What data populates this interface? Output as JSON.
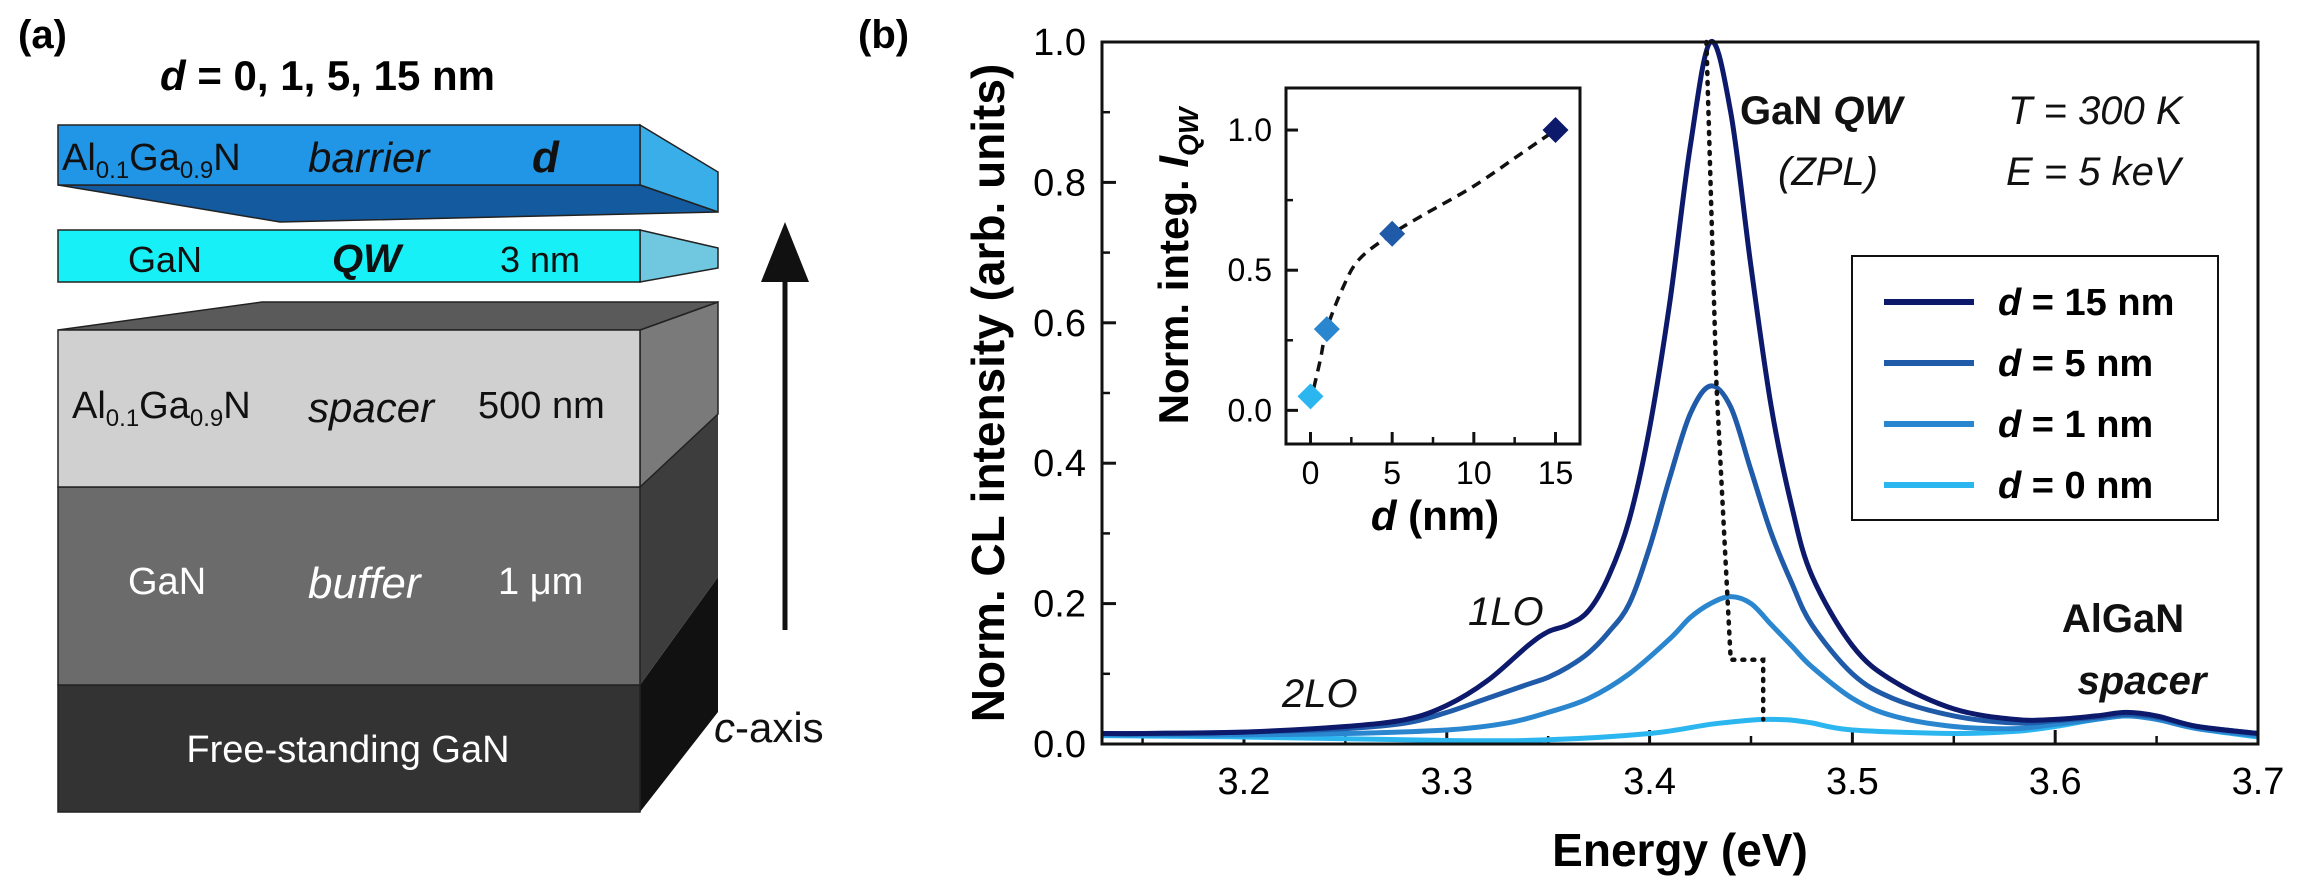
{
  "panel_a": {
    "label": "(a)",
    "title_var": "d",
    "title_rest": " = 0, 1, 5, 15 nm",
    "layers": {
      "barrier": {
        "mat_main": "Al",
        "sub1": "0.1",
        "mat_mid": "Ga",
        "sub2": "0.9",
        "mat_end": "N",
        "role": "barrier",
        "thickness": "d",
        "color": "#2196e6"
      },
      "qw": {
        "material": "GaN",
        "role": "QW",
        "thickness": "3 nm",
        "color": "#16f0f6"
      },
      "spacer": {
        "mat_main": "Al",
        "sub1": "0.1",
        "mat_mid": "Ga",
        "sub2": "0.9",
        "mat_end": "N",
        "role": "spacer",
        "thickness": "500 nm",
        "color": "#d0d0d0"
      },
      "buffer": {
        "material": "GaN",
        "role": "buffer",
        "thickness": "1 μm",
        "color": "#6b6b6b"
      },
      "substrate": {
        "material": "Free-standing GaN",
        "color": "#333333"
      }
    },
    "axis_label_var": "c",
    "axis_label_rest": "-axis"
  },
  "panel_b": {
    "label": "(b)",
    "annotations": {
      "gan_qw_prefix": "GaN ",
      "gan_qw_var": "QW",
      "zpl": "(ZPL)",
      "temperature": "T = 300 K",
      "energy": "E = 5 keV",
      "lo1": "1LO",
      "lo2": "2LO",
      "algan": "AlGaN",
      "spacer": "spacer"
    }
  },
  "chart_data": [
    {
      "type": "line",
      "title": "",
      "xlabel": "Energy (eV)",
      "ylabel": "Norm. CL intensity (arb. units)",
      "xlim": [
        3.13,
        3.7
      ],
      "ylim": [
        0.0,
        1.0
      ],
      "xticks": [
        3.2,
        3.3,
        3.4,
        3.5,
        3.6,
        3.7
      ],
      "yticks": [
        0.0,
        0.2,
        0.4,
        0.6,
        0.8,
        1.0
      ],
      "tick_labels_x": [
        "3.2",
        "3.3",
        "3.4",
        "3.5",
        "3.6",
        "3.7"
      ],
      "tick_labels_y": [
        "0.0",
        "0.2",
        "0.4",
        "0.6",
        "0.8",
        "1.0"
      ],
      "legend_position": "right",
      "series": [
        {
          "name": "d = 15 nm",
          "legend_var": "d",
          "legend_rest": " = 15 nm",
          "color": "#0d1a6b",
          "x": [
            3.13,
            3.15,
            3.2,
            3.25,
            3.28,
            3.3,
            3.32,
            3.34,
            3.35,
            3.36,
            3.37,
            3.38,
            3.39,
            3.4,
            3.41,
            3.42,
            3.43,
            3.44,
            3.45,
            3.46,
            3.47,
            3.48,
            3.5,
            3.52,
            3.55,
            3.58,
            3.6,
            3.62,
            3.635,
            3.65,
            3.67,
            3.7
          ],
          "y": [
            0.015,
            0.015,
            0.017,
            0.025,
            0.035,
            0.055,
            0.09,
            0.14,
            0.16,
            0.17,
            0.19,
            0.24,
            0.32,
            0.45,
            0.63,
            0.85,
            1.0,
            0.9,
            0.68,
            0.48,
            0.34,
            0.24,
            0.14,
            0.09,
            0.05,
            0.035,
            0.035,
            0.04,
            0.045,
            0.04,
            0.025,
            0.015
          ]
        },
        {
          "name": "d = 5 nm",
          "legend_var": "d",
          "legend_rest": " = 5 nm",
          "color": "#1f5ba8",
          "x": [
            3.13,
            3.15,
            3.2,
            3.25,
            3.28,
            3.3,
            3.32,
            3.34,
            3.35,
            3.36,
            3.37,
            3.38,
            3.39,
            3.4,
            3.41,
            3.42,
            3.43,
            3.44,
            3.45,
            3.46,
            3.47,
            3.48,
            3.5,
            3.52,
            3.55,
            3.58,
            3.6,
            3.62,
            3.635,
            3.65,
            3.67,
            3.7
          ],
          "y": [
            0.015,
            0.015,
            0.017,
            0.022,
            0.03,
            0.045,
            0.065,
            0.085,
            0.095,
            0.11,
            0.13,
            0.16,
            0.2,
            0.28,
            0.38,
            0.47,
            0.51,
            0.48,
            0.39,
            0.3,
            0.23,
            0.17,
            0.1,
            0.065,
            0.04,
            0.03,
            0.033,
            0.038,
            0.042,
            0.038,
            0.025,
            0.015
          ]
        },
        {
          "name": "d = 1 nm",
          "legend_var": "d",
          "legend_rest": " = 1 nm",
          "color": "#2a86cf",
          "x": [
            3.13,
            3.15,
            3.2,
            3.25,
            3.3,
            3.33,
            3.35,
            3.37,
            3.39,
            3.41,
            3.42,
            3.43,
            3.44,
            3.45,
            3.46,
            3.47,
            3.48,
            3.5,
            3.52,
            3.55,
            3.58,
            3.6,
            3.62,
            3.635,
            3.65,
            3.67,
            3.7
          ],
          "y": [
            0.013,
            0.013,
            0.013,
            0.015,
            0.02,
            0.03,
            0.045,
            0.065,
            0.1,
            0.15,
            0.18,
            0.2,
            0.21,
            0.2,
            0.17,
            0.14,
            0.11,
            0.065,
            0.04,
            0.025,
            0.022,
            0.028,
            0.035,
            0.04,
            0.035,
            0.022,
            0.012
          ]
        },
        {
          "name": "d = 0 nm",
          "legend_var": "d",
          "legend_rest": " = 0 nm",
          "color": "#2cb6f0",
          "x": [
            3.13,
            3.2,
            3.3,
            3.35,
            3.4,
            3.43,
            3.45,
            3.46,
            3.47,
            3.48,
            3.5,
            3.55,
            3.58,
            3.6,
            3.62,
            3.635,
            3.65,
            3.67,
            3.7
          ],
          "y": [
            0.012,
            0.01,
            0.005,
            0.006,
            0.015,
            0.028,
            0.034,
            0.035,
            0.034,
            0.03,
            0.02,
            0.015,
            0.018,
            0.025,
            0.035,
            0.04,
            0.036,
            0.022,
            0.01
          ]
        }
      ],
      "peak_guide": {
        "style": "dotted",
        "x": [
          3.428,
          3.433,
          3.44,
          3.456,
          3.456
        ],
        "y": [
          1.0,
          0.51,
          0.12,
          0.12,
          0.035
        ]
      }
    },
    {
      "type": "scatter",
      "title": "",
      "xlabel_var": "d",
      "xlabel_rest": " (nm)",
      "ylabel_main": "Norm. integ. ",
      "ylabel_var": "I",
      "ylabel_sub": "QW",
      "xlim": [
        -1.5,
        16.5
      ],
      "ylim": [
        -0.12,
        1.15
      ],
      "xticks": [
        0,
        5,
        10,
        15
      ],
      "yticks": [
        0.0,
        0.5,
        1.0
      ],
      "tick_labels_x": [
        "0",
        "5",
        "10",
        "15"
      ],
      "tick_labels_y": [
        "0.0",
        "0.5",
        "1.0"
      ],
      "points": [
        {
          "x": 0,
          "y": 0.05,
          "color": "#2cb6f0"
        },
        {
          "x": 1,
          "y": 0.29,
          "color": "#2a86cf"
        },
        {
          "x": 5,
          "y": 0.63,
          "color": "#1f5ba8"
        },
        {
          "x": 15,
          "y": 1.0,
          "color": "#0d1a6b"
        }
      ],
      "guide": {
        "style": "dashed",
        "x": [
          0.2,
          0.6,
          1.0,
          2.0,
          3.0,
          5.0,
          7.0,
          10.0,
          13.0,
          15.0
        ],
        "y": [
          0.08,
          0.18,
          0.29,
          0.44,
          0.54,
          0.63,
          0.7,
          0.8,
          0.92,
          1.0
        ]
      }
    }
  ]
}
